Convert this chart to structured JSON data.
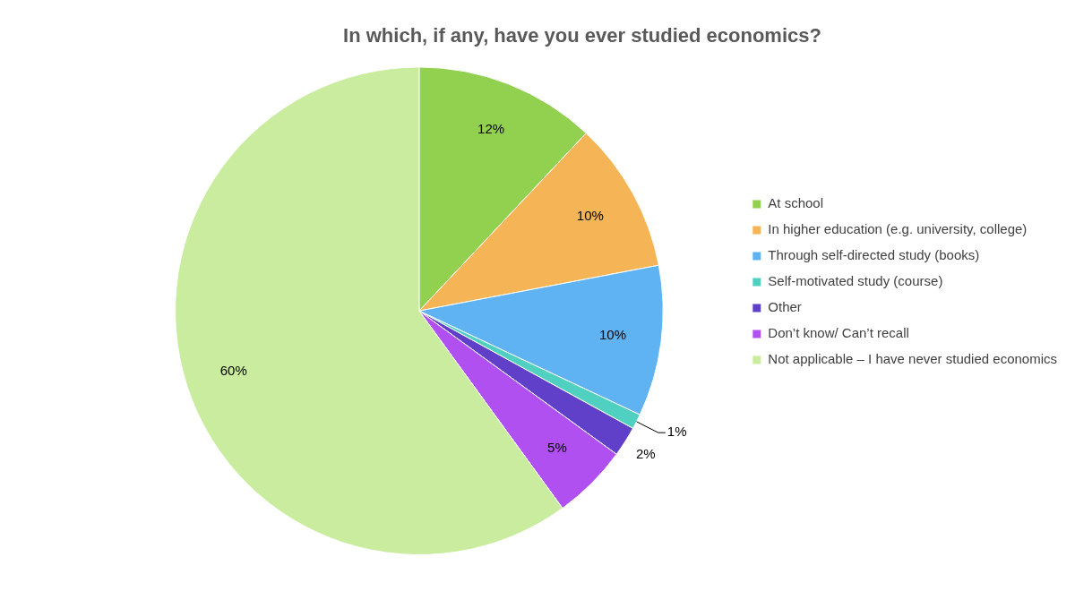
{
  "chart_data": {
    "type": "pie",
    "title": "In which, if any, have you ever studied economics?",
    "categories": [
      "At school",
      "In higher education (e.g. university, college)",
      "Through self-directed study (books)",
      "Self-motivated study (course)",
      "Other",
      "Don’t know/ Can’t recall",
      "Not applicable – I have never studied economics"
    ],
    "values": [
      12,
      10,
      10,
      1,
      2,
      5,
      60
    ],
    "value_labels": [
      "12%",
      "10%",
      "10%",
      "1%",
      "2%",
      "5%",
      "60%"
    ],
    "colors": [
      "#92d050",
      "#f5b455",
      "#5fb3f2",
      "#4fd0c0",
      "#6040c8",
      "#b050f0",
      "#c9ec9e"
    ],
    "legend": "right"
  }
}
